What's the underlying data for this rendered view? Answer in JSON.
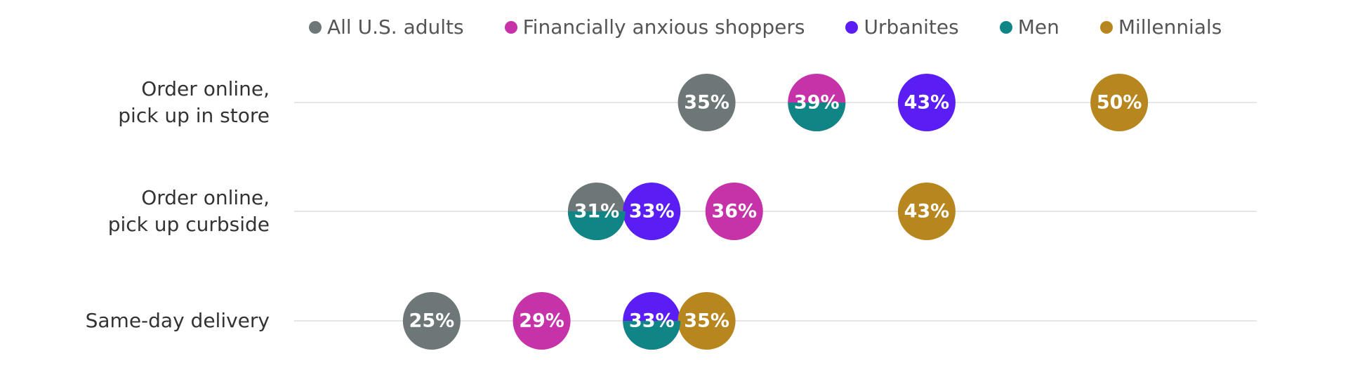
{
  "chart_data": {
    "type": "dot",
    "categories": [
      "Order online,\npick up in store",
      "Order online,\npick up curbside",
      "Same-day delivery"
    ],
    "xlim": [
      20,
      55
    ],
    "series": [
      {
        "name": "All U.S. adults",
        "color": "#6e7778",
        "values": [
          35,
          31,
          25
        ],
        "value_labels": [
          "35%",
          "31%",
          "25%"
        ]
      },
      {
        "name": "Financially anxious shoppers",
        "color": "#c632a8",
        "values": [
          39,
          36,
          29
        ],
        "value_labels": [
          "39%",
          "36%",
          "29%"
        ]
      },
      {
        "name": "Urbanites",
        "color": "#5a1ef5",
        "values": [
          43,
          33,
          33
        ],
        "value_labels": [
          "43%",
          "33%",
          "33%"
        ]
      },
      {
        "name": "Men",
        "color": "#0f8585",
        "values": [
          39,
          31,
          33
        ]
      },
      {
        "name": "Millennials",
        "color": "#b8861f",
        "values": [
          50,
          43,
          35
        ],
        "value_labels": [
          "50%",
          "43%",
          "35%"
        ]
      }
    ]
  }
}
